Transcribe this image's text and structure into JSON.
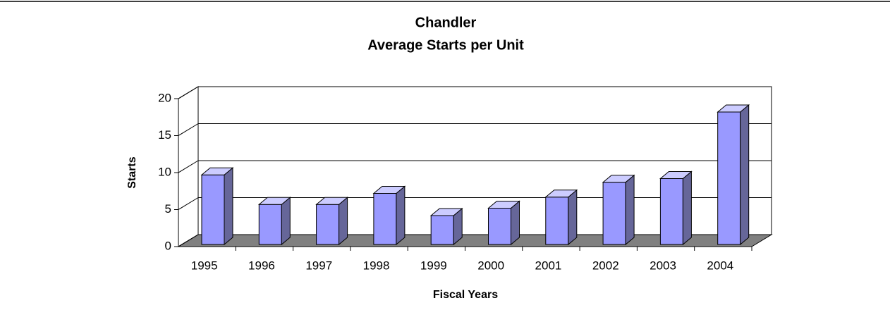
{
  "chart_data": {
    "type": "bar3d",
    "title": "Chandler",
    "subtitle": "Average Starts per Unit",
    "x_label": "Fiscal Years",
    "y_label": "Starts",
    "categories": [
      "1995",
      "1996",
      "1997",
      "1998",
      "1999",
      "2000",
      "2001",
      "2002",
      "2003",
      "2004"
    ],
    "values": [
      9.5,
      5.5,
      5.5,
      7,
      4,
      5,
      6.5,
      8.5,
      9,
      18
    ],
    "color": "#9999ff",
    "ylim": [
      0,
      20
    ],
    "yticks": [
      0,
      5,
      10,
      15,
      20
    ],
    "grid": true
  }
}
